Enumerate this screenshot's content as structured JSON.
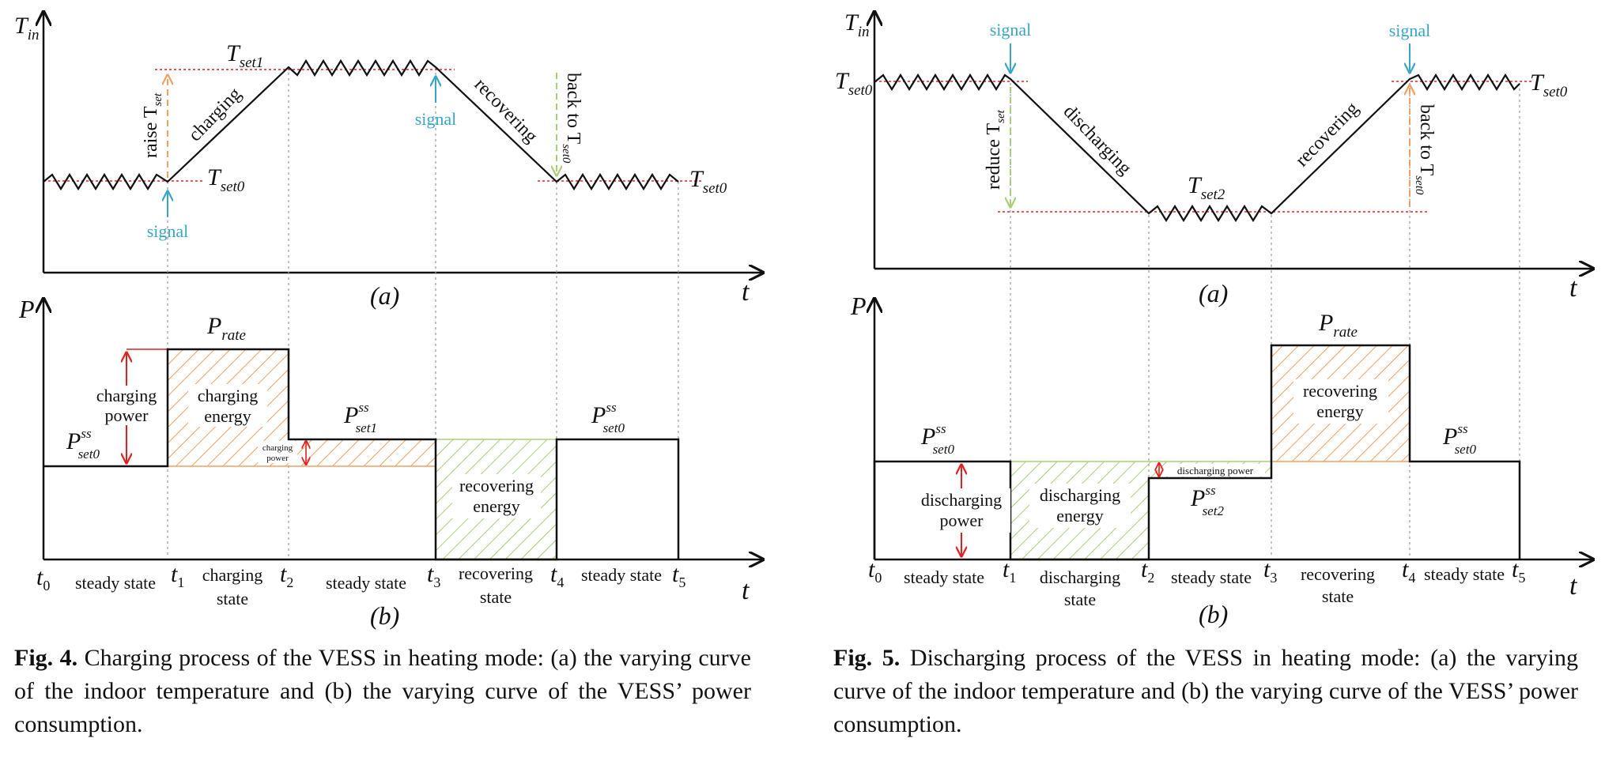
{
  "fig4": {
    "a": {
      "y_label": "T",
      "y_label_sub": "in",
      "t_label": "t",
      "panel": "(a)",
      "tset1": "T",
      "tset1_sub": "set1",
      "tset0_left": "T",
      "tset0_left_sub": "set0",
      "tset0_right": "T",
      "tset0_right_sub": "set0",
      "raise": "raise T",
      "raise_sub": "set",
      "charging": "charging",
      "recovering": "recovering",
      "back_to": "back to T",
      "back_to_sub": "set0",
      "signal_1": "signal",
      "signal_2": "signal"
    },
    "b": {
      "y_label": "P",
      "t_label": "t",
      "panel": "(b)",
      "prate": "P",
      "prate_sub": "rate",
      "pss1": "P",
      "pss1_sup": "ss",
      "pss1_sub": "set1",
      "pss0_left": "P",
      "pss0_left_sup": "ss",
      "pss0_left_sub": "set0",
      "pss0_right": "P",
      "pss0_right_sup": "ss",
      "pss0_right_sub": "set0",
      "charging_power_1": "charging",
      "charging_power_2": "power",
      "charging_energy_1": "charging",
      "charging_energy_2": "energy",
      "small_power_1": "charging",
      "small_power_2": "power",
      "recovering_energy_1": "recovering",
      "recovering_energy_2": "energy",
      "ticks": [
        "t",
        "t",
        "t",
        "t",
        "t",
        "t"
      ],
      "tick_subs": [
        "0",
        "1",
        "2",
        "3",
        "4",
        "5"
      ],
      "state_1": "steady state",
      "state_2a": "charging",
      "state_2b": "state",
      "state_3": "steady state",
      "state_4a": "recovering",
      "state_4b": "state",
      "state_5": "steady state"
    },
    "caption_bold": "Fig. 4.",
    "caption_text": " Charging process of the VESS in heating mode: (a) the varying curve of the indoor temperature and (b) the varying curve of the VESS’ power consumption."
  },
  "fig5": {
    "a": {
      "y_label": "T",
      "y_label_sub": "in",
      "t_label": "t",
      "panel": "(a)",
      "tset0_left": "T",
      "tset0_left_sub": "set0",
      "tset0_right": "T",
      "tset0_right_sub": "set0",
      "tset2": "T",
      "tset2_sub": "set2",
      "reduce": "reduce T",
      "reduce_sub": "set",
      "discharging": "discharging",
      "recovering": "recovering",
      "back_to": "back to T",
      "back_to_sub": "set0",
      "signal_1": "signal",
      "signal_2": "signal"
    },
    "b": {
      "y_label": "P",
      "t_label": "t",
      "panel": "(b)",
      "prate": "P",
      "prate_sub": "rate",
      "pss0_left": "P",
      "pss0_left_sup": "ss",
      "pss0_left_sub": "set0",
      "pss0_right": "P",
      "pss0_right_sup": "ss",
      "pss0_right_sub": "set0",
      "pss2": "P",
      "pss2_sup": "ss",
      "pss2_sub": "set2",
      "discharging_power_1": "discharging",
      "discharging_power_2": "power",
      "discharging_energy_1": "discharging",
      "discharging_energy_2": "energy",
      "small_power": "discharging power",
      "recovering_energy_1": "recovering",
      "recovering_energy_2": "energy",
      "ticks": [
        "t",
        "t",
        "t",
        "t",
        "t",
        "t"
      ],
      "tick_subs": [
        "0",
        "1",
        "2",
        "3",
        "4",
        "5"
      ],
      "state_1": "steady state",
      "state_2a": "discharging",
      "state_2b": "state",
      "state_3": "steady state",
      "state_4a": "recovering",
      "state_4b": "state",
      "state_5": "steady state"
    },
    "caption_bold": "Fig. 5.",
    "caption_text": " Discharging process of the VESS in heating mode: (a) the varying curve of the indoor temperature and (b) the varying curve of the VESS’ power consumption."
  },
  "colors": {
    "red": "#e02020",
    "blue": "#3aa6c4",
    "orange": "#f0a060",
    "green": "#a8cf78",
    "line": "#111111",
    "grid": "#999999"
  }
}
